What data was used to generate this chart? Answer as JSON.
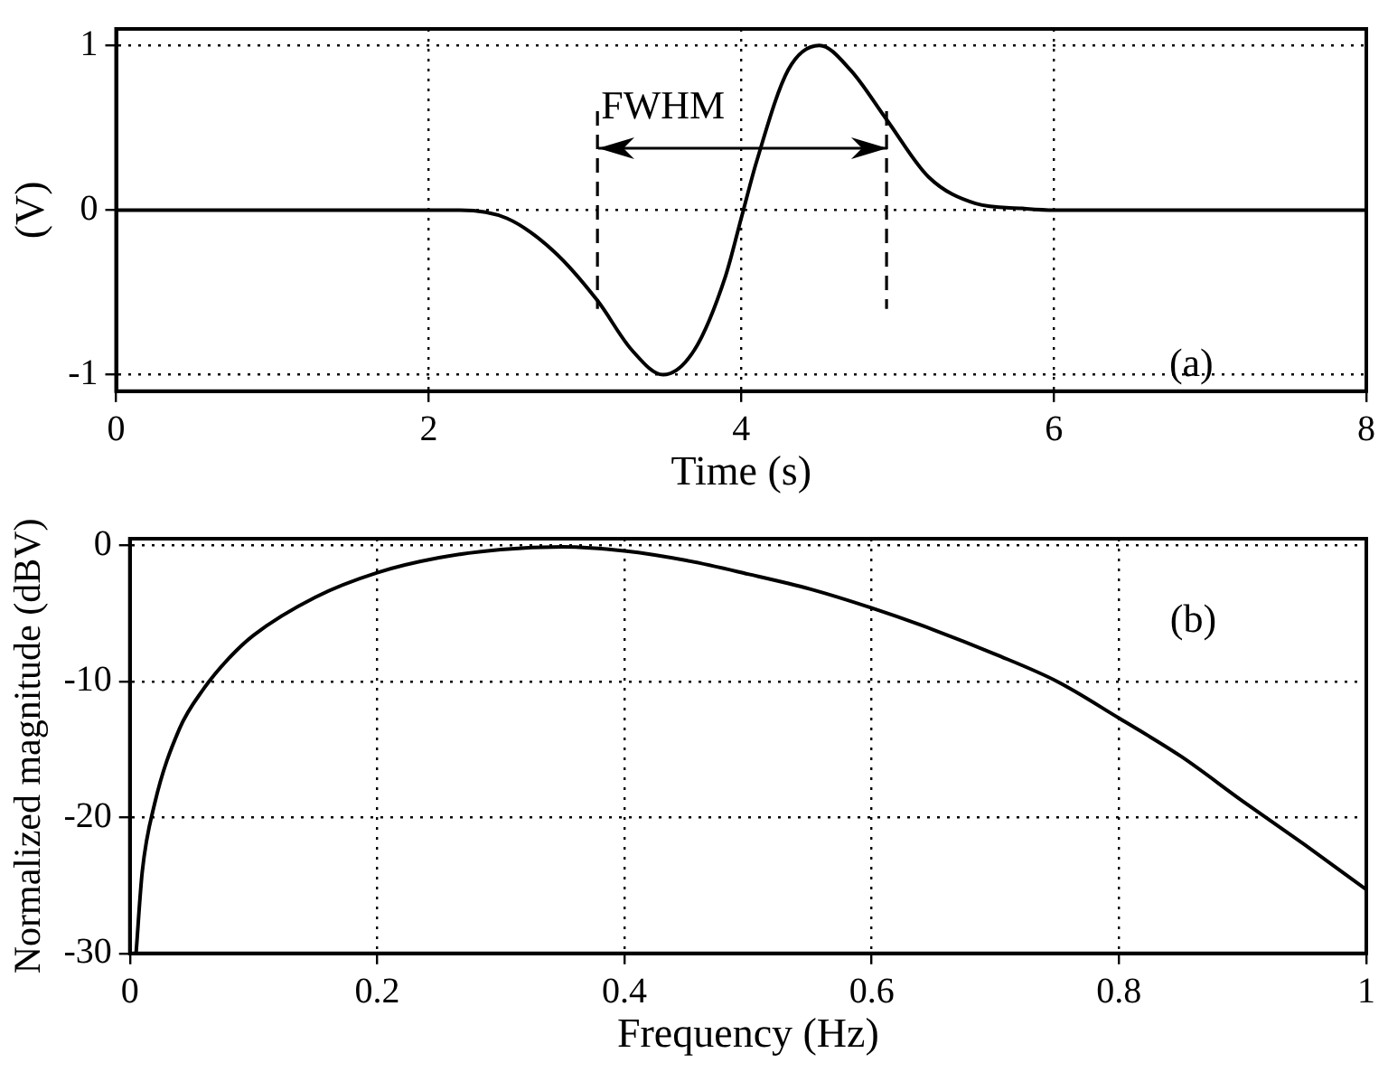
{
  "chart_data": [
    {
      "type": "line",
      "ylabel": "(V)",
      "xlabel": "Time (s)",
      "xlim": [
        0,
        8
      ],
      "xticks": [
        0,
        2,
        4,
        6,
        8
      ],
      "ylim": [
        -1.1,
        1.1
      ],
      "yticks": [
        -1,
        0,
        1
      ],
      "grid": true,
      "marker": "none",
      "line_style": "solid",
      "legend": false,
      "x": [
        0,
        1,
        2,
        2.2,
        2.5,
        2.8,
        3.08,
        3.3,
        3.5,
        3.7,
        3.9,
        4.0,
        4.1,
        4.3,
        4.5,
        4.7,
        4.93,
        5.2,
        5.5,
        5.8,
        6,
        7,
        8
      ],
      "series": [
        {
          "color": "#000000",
          "values": [
            0,
            0,
            0,
            0,
            -0.05,
            -0.25,
            -0.55,
            -0.85,
            -1,
            -0.85,
            -0.4,
            -0.05,
            0.3,
            0.85,
            1,
            0.85,
            0.55,
            0.2,
            0.04,
            0.01,
            0,
            0,
            0
          ]
        }
      ],
      "ref_lines": [
        {
          "axis": "x",
          "value": 3.08,
          "line_style": "dashed"
        },
        {
          "axis": "x",
          "value": 4.93,
          "line_style": "dashed"
        }
      ],
      "annotations": [
        {
          "text": "FWHM",
          "x": 3.08,
          "y": 0.5
        },
        "(a)"
      ]
    },
    {
      "type": "line",
      "ylabel": "Normalized magnitude (dBV)",
      "xlabel": "Frequency (Hz)",
      "xlim": [
        0,
        1
      ],
      "xticks": [
        0,
        0.2,
        0.4,
        0.6,
        0.8,
        1
      ],
      "ylim": [
        -30,
        0.5
      ],
      "yticks": [
        -30,
        -20,
        -10,
        0
      ],
      "grid": true,
      "marker": "none",
      "line_style": "solid",
      "legend": false,
      "x": [
        0.005,
        0.01,
        0.02,
        0.04,
        0.06,
        0.08,
        0.1,
        0.15,
        0.2,
        0.25,
        0.3,
        0.35,
        0.4,
        0.45,
        0.5,
        0.55,
        0.6,
        0.65,
        0.7,
        0.75,
        0.8,
        0.85,
        0.9,
        0.95,
        1.0
      ],
      "series": [
        {
          "color": "#000000",
          "values": [
            -30,
            -24,
            -19,
            -13.5,
            -10.5,
            -8.3,
            -6.6,
            -3.8,
            -2,
            -0.9,
            -0.3,
            -0.1,
            -0.4,
            -1.1,
            -2.1,
            -3.2,
            -4.6,
            -6.2,
            -8,
            -10,
            -12.7,
            -15.5,
            -18.8,
            -22,
            -25.3
          ]
        }
      ],
      "annotations": [
        "(b)"
      ]
    }
  ]
}
